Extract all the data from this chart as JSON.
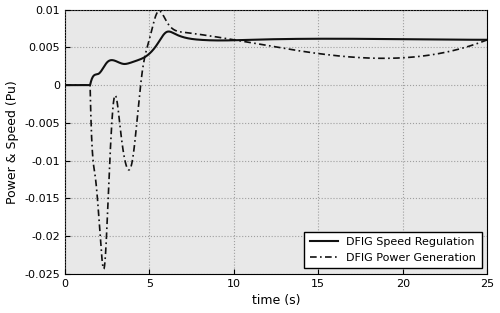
{
  "xlabel": "time (s)",
  "ylabel": "Power & Speed (Pu)",
  "xlim": [
    0,
    25
  ],
  "ylim": [
    -0.025,
    0.01
  ],
  "yticks": [
    -0.025,
    -0.02,
    -0.015,
    -0.01,
    -0.005,
    0,
    0.005,
    0.01
  ],
  "xticks": [
    0,
    5,
    10,
    15,
    20,
    25
  ],
  "legend_labels": [
    "DFIG Speed Regulation",
    "DFIG Power Generation"
  ],
  "figsize": [
    5.0,
    3.13
  ],
  "dpi": 100,
  "speed_t": [
    0,
    1.5,
    1.51,
    2.0,
    2.5,
    3.0,
    3.5,
    3.8,
    4.2,
    4.8,
    5.5,
    6.0,
    6.5,
    8.0,
    11.0,
    25.0
  ],
  "speed_v": [
    0,
    0,
    0.0001,
    0.0015,
    0.003,
    0.0032,
    0.0028,
    0.0029,
    0.0032,
    0.0038,
    0.0055,
    0.007,
    0.0068,
    0.006,
    0.006,
    0.006
  ],
  "power_t": [
    0,
    1.5,
    1.51,
    1.8,
    2.1,
    2.35,
    2.55,
    2.9,
    3.3,
    3.7,
    4.0,
    4.35,
    4.6,
    5.0,
    5.5,
    6.0,
    7.0,
    10.0,
    25.0
  ],
  "power_v": [
    0,
    0,
    -0.001,
    -0.012,
    -0.02,
    -0.024,
    -0.016,
    -0.002,
    -0.006,
    -0.011,
    -0.01,
    -0.003,
    0.002,
    0.006,
    0.0097,
    0.0085,
    0.007,
    0.006,
    0.006
  ],
  "bg_color": "#e8e8e8",
  "grid_color": "#808080",
  "line_color": "#111111"
}
